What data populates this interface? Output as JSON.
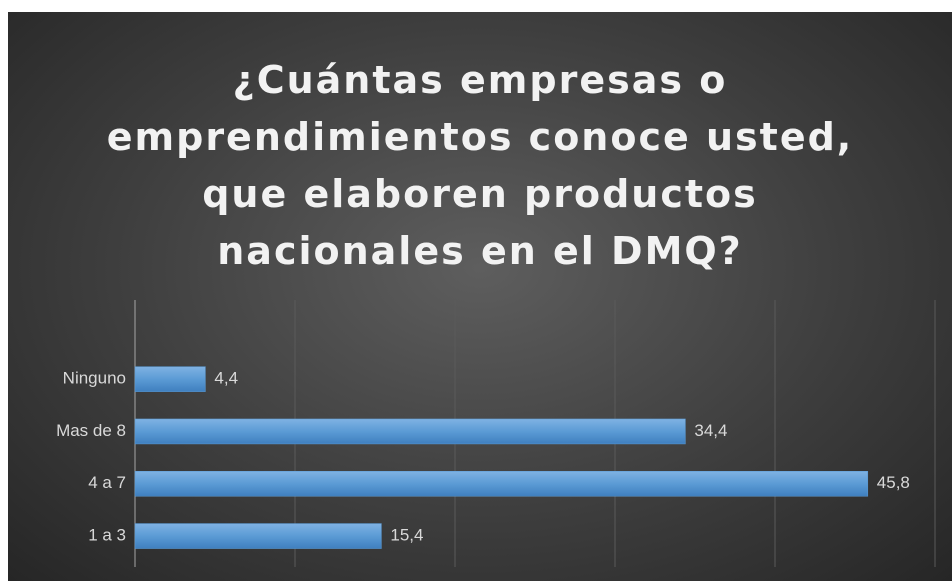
{
  "chart_data": {
    "type": "bar",
    "orientation": "horizontal",
    "title": "¿Cuántas empresas o\nemprendimientos conoce usted,\nque elaboren productos\nnacionales en el DMQ?",
    "categories": [
      "Ninguno",
      "Mas de 8",
      "4 a 7",
      "1 a 3"
    ],
    "values": [
      4.4,
      34.4,
      45.8,
      15.4
    ],
    "value_labels": [
      "4,4",
      "34,4",
      "45,8",
      "15,4"
    ],
    "color": "#5b9bd5",
    "xlim": [
      0,
      50
    ],
    "xticks": [
      0,
      10,
      20,
      30,
      40,
      50
    ],
    "grid": true
  }
}
